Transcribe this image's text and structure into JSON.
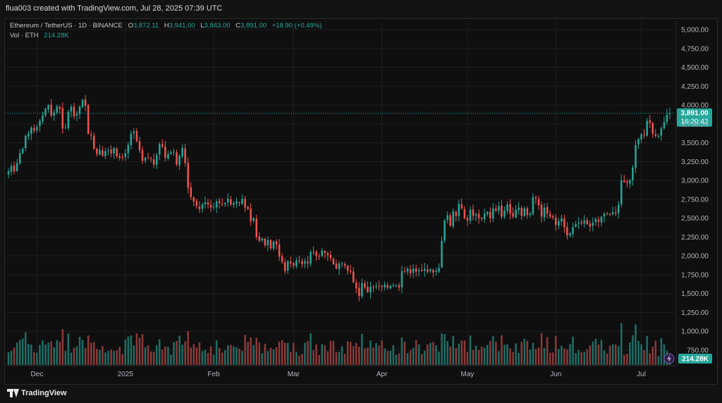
{
  "header": {
    "text": "flua003 created with TradingView.com, Jul 28, 2025 07:39 UTC"
  },
  "legend": {
    "symbol": "Ethereum / TetherUS · 1D · BINANCE",
    "o_label": "O",
    "o_value": "3,872.11",
    "h_label": "H",
    "h_value": "3,941.00",
    "l_label": "L",
    "l_value": "3,843.00",
    "c_label": "C",
    "c_value": "3,891.00",
    "change": "+18.90 (+0.49%)",
    "vol_label": "Vol · ETH",
    "vol_value": "214.28K"
  },
  "price_label": {
    "price": "3,891.00",
    "countdown": "16:20:42"
  },
  "volume_label": "214.28K",
  "footer": {
    "brand": "TradingView"
  },
  "colors": {
    "up": "#26a69a",
    "down": "#ef5350",
    "up_vol": "#1f6e66",
    "down_vol": "#8b3a39",
    "grid": "#1e1e1e",
    "axis_text": "#b2b5be",
    "price_line": "#26a69a"
  },
  "chart_data": {
    "type": "candlestick",
    "symbol": "Ethereum / TetherUS",
    "interval": "1D",
    "exchange": "BINANCE",
    "ylim": [
      750,
      5000
    ],
    "yticks": [
      750,
      1000,
      1250,
      1500,
      1750,
      2000,
      2250,
      2500,
      2750,
      3000,
      3250,
      3500,
      3750,
      4000,
      4250,
      4500,
      4750,
      5000
    ],
    "ytick_labels": [
      "750.00",
      "1,000.00",
      "1,250.00",
      "1,500.00",
      "1,750.00",
      "2,000.00",
      "2,250.00",
      "2,500.00",
      "2,750.00",
      "3,000.00",
      "3,250.00",
      "3,500.00",
      "3,750.00",
      "4,000.00",
      "4,250.00",
      "4,500.00",
      "4,750.00",
      "5,000.00"
    ],
    "x_labels": [
      {
        "label": "Dec",
        "day": 0
      },
      {
        "label": "2025",
        "day": 31
      },
      {
        "label": "Feb",
        "day": 62
      },
      {
        "label": "Mar",
        "day": 90
      },
      {
        "label": "Apr",
        "day": 121
      },
      {
        "label": "May",
        "day": 151
      },
      {
        "label": "Jun",
        "day": 182
      },
      {
        "label": "Jul",
        "day": 212
      }
    ],
    "first_date": "2024-11-21",
    "last_date": "2025-07-28",
    "grid": true,
    "last_price": 3891.0,
    "closes": [
      3120,
      3190,
      3120,
      3230,
      3360,
      3420,
      3590,
      3620,
      3700,
      3660,
      3710,
      3790,
      3860,
      3950,
      4000,
      3860,
      3900,
      3980,
      3950,
      3690,
      3700,
      3910,
      3980,
      3850,
      3880,
      3980,
      4070,
      3990,
      3620,
      3600,
      3420,
      3350,
      3410,
      3330,
      3390,
      3400,
      3360,
      3430,
      3320,
      3300,
      3300,
      3360,
      3470,
      3620,
      3650,
      3520,
      3400,
      3260,
      3300,
      3300,
      3290,
      3210,
      3340,
      3480,
      3450,
      3300,
      3350,
      3370,
      3380,
      3210,
      3330,
      3430,
      3230,
      2900,
      2780,
      2720,
      2660,
      2620,
      2680,
      2710,
      2680,
      2640,
      2650,
      2720,
      2700,
      2690,
      2700,
      2760,
      2680,
      2700,
      2720,
      2700,
      2760,
      2640,
      2620,
      2460,
      2500,
      2250,
      2200,
      2230,
      2140,
      2210,
      2100,
      2190,
      2150,
      1990,
      1920,
      1800,
      1930,
      1900,
      1870,
      1940,
      1930,
      1890,
      1930,
      1900,
      2050,
      2050,
      2000,
      2000,
      2070,
      2040,
      2010,
      1970,
      1890,
      1830,
      1900,
      1900,
      1870,
      1800,
      1790,
      1650,
      1570,
      1470,
      1640,
      1580,
      1520,
      1590,
      1580,
      1600,
      1600,
      1590,
      1620,
      1580,
      1600,
      1610,
      1610,
      1580,
      1800,
      1790,
      1830,
      1770,
      1830,
      1790,
      1810,
      1800,
      1830,
      1790,
      1820,
      1780,
      1800,
      1840,
      2200,
      2470,
      2540,
      2400,
      2590,
      2530,
      2690,
      2630,
      2500,
      2470,
      2610,
      2530,
      2550,
      2500,
      2490,
      2560,
      2580,
      2500,
      2630,
      2600,
      2660,
      2520,
      2600,
      2680,
      2560,
      2520,
      2610,
      2640,
      2530,
      2630,
      2540,
      2560,
      2780,
      2760,
      2670,
      2520,
      2640,
      2560,
      2520,
      2510,
      2410,
      2460,
      2500,
      2380,
      2270,
      2300,
      2380,
      2420,
      2440,
      2430,
      2470,
      2420,
      2390,
      2440,
      2490,
      2450,
      2520,
      2560,
      2560,
      2560,
      2580,
      2560,
      2680,
      3000,
      2980,
      2970,
      3000,
      3170,
      3470,
      3550,
      3610,
      3600,
      3790,
      3760,
      3620,
      3590,
      3590,
      3690,
      3770,
      3871,
      3891
    ],
    "volume": {
      "ylim_shares": "relative",
      "last": "214.28K"
    }
  }
}
